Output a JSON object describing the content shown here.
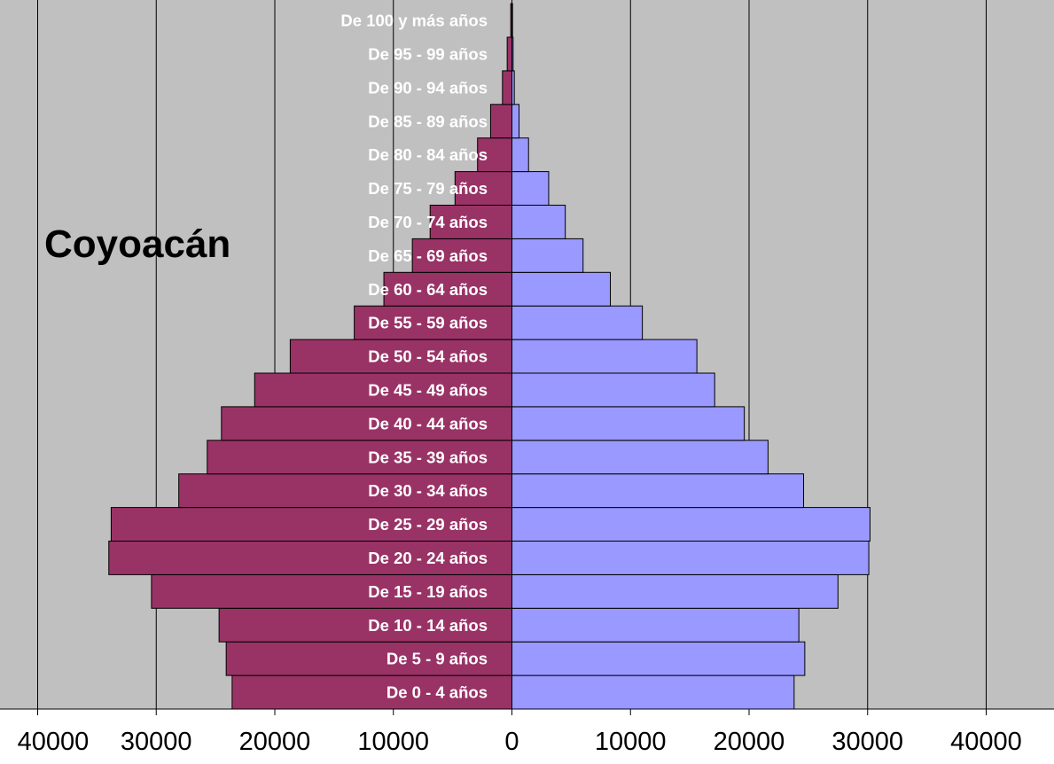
{
  "chart_data": {
    "type": "bar",
    "orientation": "horizontal",
    "title": "Coyoacán",
    "categories": [
      "De 0 - 4 años",
      "De 5 - 9 años",
      "De 10 - 14 años",
      "De 15 - 19 años",
      "De 20 - 24 años",
      "De 25 - 29 años",
      "De 30 - 34 años",
      "De 35 - 39 años",
      "De 40 - 44 años",
      "De 45 - 49 años",
      "De 50 - 54 años",
      "De 55 - 59 años",
      "De 60 - 64 años",
      "De 65 - 69 años",
      "De 70 - 74 años",
      "De 75 - 79 años",
      "De 80 - 84 años",
      "De 85 - 89 años",
      "De 90 - 94 años",
      "De 95 - 99 años",
      "De 100 y más años"
    ],
    "series": [
      {
        "color": "#993366",
        "values": [
          -23600,
          -24100,
          -24700,
          -30400,
          -34000,
          -33800,
          -28100,
          -25700,
          -24500,
          -21700,
          -18700,
          -13300,
          -10800,
          -8400,
          -6900,
          -4800,
          -2900,
          -1800,
          -800,
          -400,
          -100
        ]
      },
      {
        "color": "#9999ff",
        "values": [
          23800,
          24700,
          24200,
          27500,
          30100,
          30200,
          24600,
          21600,
          19600,
          17100,
          15600,
          11000,
          8300,
          6000,
          4500,
          3100,
          1400,
          600,
          200,
          100,
          50
        ]
      }
    ],
    "xlim": [
      -40000,
      40000
    ],
    "x_ticks": [
      -40000,
      -30000,
      -20000,
      -10000,
      0,
      10000,
      20000,
      30000,
      40000
    ],
    "x_tick_labels": [
      "40000",
      "30000",
      "20000",
      "10000",
      "0",
      "10000",
      "20000",
      "30000",
      "40000"
    ],
    "grid": true,
    "plot_background": "#c0c0c0",
    "bar_outline": "#000000",
    "category_label_color": "#ffffff"
  }
}
